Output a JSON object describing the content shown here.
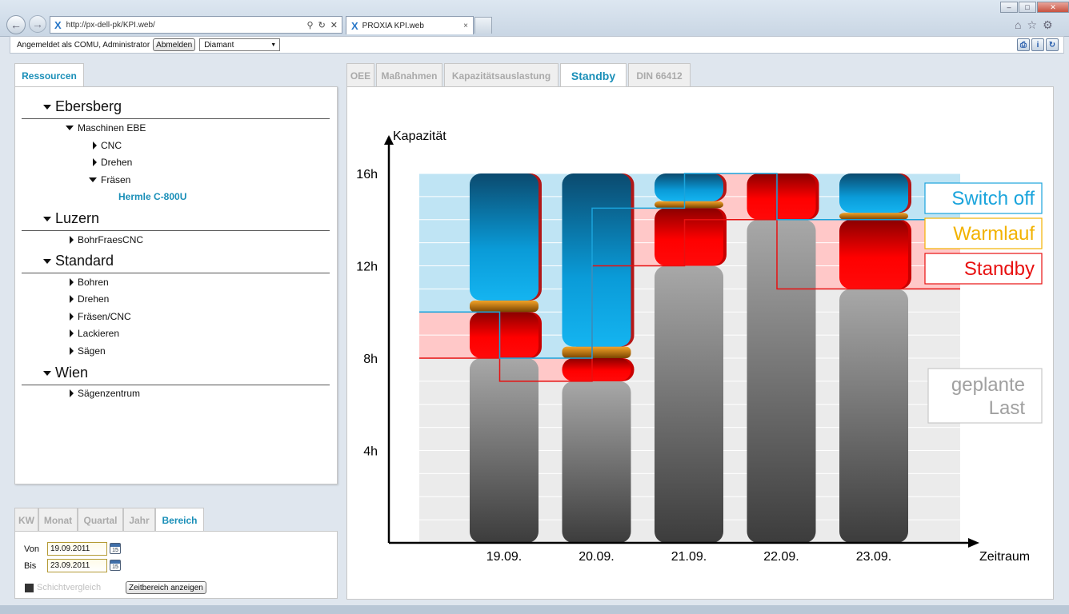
{
  "browser": {
    "url": "http://px-dell-pk/KPI.web/",
    "tab_title": "PROXIA KPI.web"
  },
  "appbar": {
    "logged_in_text": "Angemeldet als  COMU, Administrator",
    "logout_label": "Abmelden",
    "selector_value": "Diamant"
  },
  "resources": {
    "tab_label": "Ressourcen",
    "sites": [
      {
        "name": "Ebersberg"
      },
      {
        "name": "Luzern"
      },
      {
        "name": "Standard"
      },
      {
        "name": "Wien"
      }
    ],
    "nodes": {
      "maschinen_ebe": "Maschinen EBE",
      "cnc": "CNC",
      "drehen1": "Drehen",
      "fraesen": "Fräsen",
      "hermle": "Hermle C-800U",
      "bohrfraes": "BohrFraesCNC",
      "bohren": "Bohren",
      "drehen2": "Drehen",
      "fraesen_cnc": "Fräsen/CNC",
      "lackieren": "Lackieren",
      "saegen": "Sägen",
      "saegenzentrum": "Sägenzentrum"
    }
  },
  "period": {
    "tabs": [
      "KW",
      "Monat",
      "Quartal",
      "Jahr",
      "Bereich"
    ],
    "active_tab": "Bereich",
    "from_label": "Von",
    "from_value": "19.09.2011",
    "to_label": "Bis",
    "to_value": "23.09.2011",
    "calendar_text": "15",
    "shift_compare_label": "Schichtvergleich",
    "show_range_button": "Zeitbereich anzeigen"
  },
  "kpi_tabs": [
    "OEE",
    "Maßnahmen",
    "Kapazitätsauslastung",
    "Standby",
    "DIN 66412"
  ],
  "kpi_active_tab": "Standby",
  "colors": {
    "switch_off": "#1aa4dc",
    "warmlauf": "#f2b200",
    "standby": "#e81010",
    "geplante_last": "#a8a8a8",
    "accent": "#1a8fb8"
  },
  "chart_data": {
    "type": "bar",
    "ylabel": "Kapazität",
    "xlabel": "Zeitraum",
    "ylim": [
      0,
      16
    ],
    "yticks": [
      "4h",
      "8h",
      "12h",
      "16h"
    ],
    "categories": [
      "19.09.",
      "20.09.",
      "21.09.",
      "22.09.",
      "23.09."
    ],
    "stacked": true,
    "series": [
      {
        "name": "geplante Last",
        "color": "#a8a8a8",
        "values": [
          8,
          7,
          12,
          14,
          11
        ]
      },
      {
        "name": "Standby",
        "color": "#e81010",
        "values": [
          2,
          1,
          2.5,
          2,
          3
        ]
      },
      {
        "name": "Warmlauf",
        "color": "#f2b200",
        "values": [
          0.5,
          0.5,
          0.3,
          0,
          0.3
        ]
      },
      {
        "name": "Switch off",
        "color": "#1aa4dc",
        "values": [
          5.5,
          7.5,
          1.2,
          0,
          1.7
        ]
      }
    ],
    "legend_labels": [
      "Switch off",
      "Warmlauf",
      "Standby",
      "geplante\nLast"
    ]
  }
}
